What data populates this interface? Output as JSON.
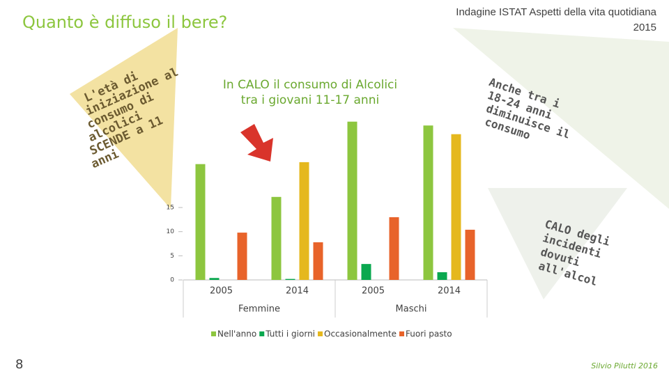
{
  "slide": {
    "title": "Quanto è diffuso il bere?",
    "source_line1": "Indagine ISTAT  Aspetti della vita quotidiana",
    "source_line2": "2015",
    "left_note": [
      "L'età di",
      "iniziazione al",
      "consumo di",
      "alcolici",
      "SCENDE a 11",
      "anni"
    ],
    "center_note": [
      "In CALO il consumo di Alcolici",
      "tra i giovani 11-17 anni"
    ],
    "right_note": [
      "Anche tra i",
      "18-24 anni",
      "diminuisce il",
      "consumo"
    ],
    "right_note2": [
      "CALO degli",
      "incidenti",
      "dovuti",
      "all'alcol"
    ],
    "page_number": "8",
    "author": "Silvio Pilutti 2016"
  },
  "chart_data": {
    "type": "bar",
    "categories": [
      "2005",
      "2014",
      "2005",
      "2014"
    ],
    "group_labels": [
      "Femmine",
      "Maschi"
    ],
    "series": [
      {
        "name": "Nell'anno",
        "color": "#8dc63f",
        "values": [
          24.0,
          17.2,
          32.8,
          32.0
        ]
      },
      {
        "name": "Tutti i giorni",
        "color": "#0aa84f",
        "values": [
          0.4,
          0.2,
          3.3,
          1.6
        ]
      },
      {
        "name": "Occasionalmente",
        "color": "#e5b81e",
        "values": [
          null,
          24.4,
          null,
          30.2
        ]
      },
      {
        "name": "Fuori pasto",
        "color": "#e8632a",
        "values": [
          9.8,
          7.8,
          13.0,
          10.4
        ]
      }
    ],
    "ylim": [
      0,
      35
    ],
    "yticks": [
      0,
      5,
      10,
      15
    ],
    "legend": "bottom"
  }
}
